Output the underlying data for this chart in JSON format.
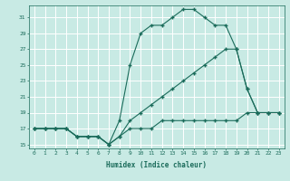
{
  "xlabel": "Humidex (Indice chaleur)",
  "bg_color": "#c8eae4",
  "grid_color": "#ffffff",
  "line_color": "#1a6b5a",
  "marker": "+",
  "line1_x": [
    0,
    1,
    2,
    3,
    4,
    5,
    6,
    7,
    8,
    9,
    10,
    11,
    12,
    13,
    14,
    15,
    16,
    17,
    18,
    19,
    20,
    21,
    22,
    23
  ],
  "line1_y": [
    17,
    17,
    17,
    17,
    16,
    16,
    16,
    15,
    18,
    25,
    29,
    30,
    30,
    31,
    32,
    32,
    31,
    30,
    30,
    27,
    22,
    19,
    19,
    19
  ],
  "line2_x": [
    0,
    1,
    2,
    3,
    4,
    5,
    6,
    7,
    8,
    9,
    10,
    11,
    12,
    13,
    14,
    15,
    16,
    17,
    18,
    19,
    20,
    21,
    22,
    23
  ],
  "line2_y": [
    17,
    17,
    17,
    17,
    16,
    16,
    16,
    15,
    16,
    18,
    19,
    20,
    21,
    22,
    23,
    24,
    25,
    26,
    27,
    27,
    22,
    19,
    19,
    19
  ],
  "line3_x": [
    0,
    1,
    2,
    3,
    4,
    5,
    6,
    7,
    8,
    9,
    10,
    11,
    12,
    13,
    14,
    15,
    16,
    17,
    18,
    19,
    20,
    21,
    22,
    23
  ],
  "line3_y": [
    17,
    17,
    17,
    17,
    16,
    16,
    16,
    15,
    16,
    17,
    17,
    17,
    18,
    18,
    18,
    18,
    18,
    18,
    18,
    18,
    19,
    19,
    19,
    19
  ],
  "ylim": [
    14.5,
    32.5
  ],
  "xlim": [
    -0.5,
    23.5
  ],
  "yticks": [
    15,
    17,
    19,
    21,
    23,
    25,
    27,
    29,
    31
  ],
  "xticks": [
    0,
    1,
    2,
    3,
    4,
    5,
    6,
    7,
    8,
    9,
    10,
    11,
    12,
    13,
    14,
    15,
    16,
    17,
    18,
    19,
    20,
    21,
    22,
    23
  ]
}
